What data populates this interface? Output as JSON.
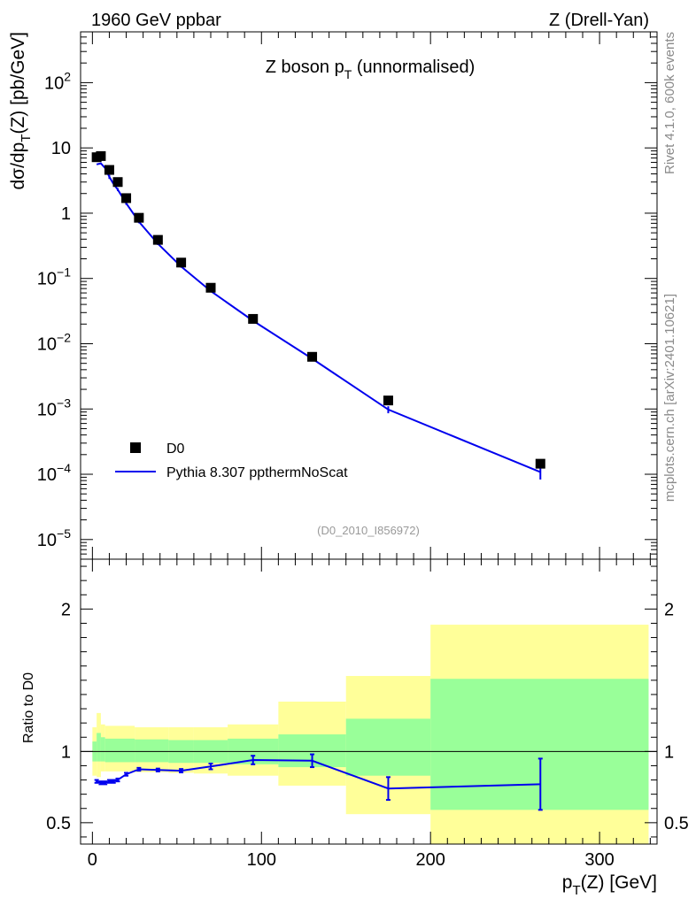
{
  "header": {
    "left": "1960 GeV ppbar",
    "right": "Z (Drell-Yan)"
  },
  "side": {
    "rivet": "Rivet 4.1.0,  600k events",
    "mcplots": "mcplots.cern.ch [arXiv:2401.10621]"
  },
  "chart_data": [
    {
      "type": "scatter",
      "panel": "main",
      "title": "Z boson p_T (unnormalised)",
      "title_main": "Z boson p",
      "title_sub": "T",
      "title_tail": " (unnormalised)",
      "ylabel": "dσ/dp_T(Z) [pb/GeV]",
      "ylabel_parts": {
        "a": "dσ/dp",
        "sub": "T",
        "b": "(Z) [pb/GeV]"
      },
      "yscale": "log",
      "ylim": [
        5e-06,
        600
      ],
      "xlim": [
        -7,
        334
      ],
      "analysis_label": "(D0_2010_I856972)",
      "y_tick_labels": [
        {
          "value": 100,
          "base": "10",
          "exp": "2"
        },
        {
          "value": 10,
          "text": "10"
        },
        {
          "value": 1,
          "text": "1"
        },
        {
          "value": 0.1,
          "base": "10",
          "exp": "−1"
        },
        {
          "value": 0.01,
          "base": "10",
          "exp": "−2"
        },
        {
          "value": 0.001,
          "base": "10",
          "exp": "−3"
        },
        {
          "value": 0.0001,
          "base": "10",
          "exp": "−4"
        },
        {
          "value": 1e-05,
          "base": "10",
          "exp": "−5"
        }
      ],
      "legend": {
        "position": "bottom-left",
        "entries": [
          {
            "name": "D0",
            "marker": "square",
            "color": "#000000"
          },
          {
            "name": "Pythia 8.307 ppthermNoScat",
            "marker": "line",
            "color": "#0000ee"
          }
        ]
      },
      "series": [
        {
          "name": "D0",
          "x": [
            2.5,
            5,
            10,
            15,
            20,
            27.5,
            38.75,
            52.5,
            70,
            95,
            130,
            175,
            265
          ],
          "y": [
            7.2,
            7.5,
            4.6,
            3.0,
            1.7,
            0.85,
            0.39,
            0.175,
            0.072,
            0.024,
            0.0063,
            0.00135,
            0.000145
          ]
        },
        {
          "name": "Pythia 8.307 ppthermNoScat",
          "x": [
            2.5,
            5,
            7.5,
            10,
            12.5,
            15,
            20,
            27.5,
            38.75,
            52.5,
            70,
            95,
            130,
            175,
            265
          ],
          "y": [
            5.6,
            5.8,
            4.9,
            3.6,
            2.8,
            2.3,
            1.42,
            0.74,
            0.34,
            0.152,
            0.064,
            0.0225,
            0.0059,
            0.00098,
            0.000108
          ],
          "yerr": [
            0,
            0,
            0,
            0.25,
            0,
            0.12,
            0.08,
            0.04,
            0.015,
            0.006,
            0.0025,
            0.001,
            0.0003,
            0.00012,
            2.5e-05
          ]
        }
      ]
    },
    {
      "type": "line",
      "panel": "ratio",
      "ylabel": "Ratio to D0",
      "xlabel": "p_T(Z) [GeV]",
      "xlabel_parts": {
        "a": "p",
        "sub": "T",
        "b": "(Z) [GeV]"
      },
      "ylim": [
        0.35,
        2.35
      ],
      "xlim": [
        -7,
        334
      ],
      "x_tick_labels": [
        "0",
        "100",
        "200",
        "300"
      ],
      "y_tick_labels": [
        "0.5",
        "1",
        "2"
      ],
      "reference_line": 1,
      "bands": [
        {
          "x0": 0,
          "x1": 2.5,
          "stat_lo": 0.93,
          "stat_hi": 1.07,
          "tot_lo": 0.83,
          "tot_hi": 1.17
        },
        {
          "x0": 2.5,
          "x1": 5,
          "stat_lo": 0.93,
          "stat_hi": 1.13,
          "tot_lo": 0.82,
          "tot_hi": 1.27
        },
        {
          "x0": 5,
          "x1": 7.5,
          "stat_lo": 0.93,
          "stat_hi": 1.1,
          "tot_lo": 0.86,
          "tot_hi": 1.19
        },
        {
          "x0": 7.5,
          "x1": 25,
          "stat_lo": 0.925,
          "stat_hi": 1.09,
          "tot_lo": 0.86,
          "tot_hi": 1.18
        },
        {
          "x0": 25,
          "x1": 45,
          "stat_lo": 0.925,
          "stat_hi": 1.085,
          "tot_lo": 0.855,
          "tot_hi": 1.17
        },
        {
          "x0": 45,
          "x1": 60,
          "stat_lo": 0.92,
          "stat_hi": 1.08,
          "tot_lo": 0.85,
          "tot_hi": 1.17
        },
        {
          "x0": 60,
          "x1": 80,
          "stat_lo": 0.92,
          "stat_hi": 1.08,
          "tot_lo": 0.845,
          "tot_hi": 1.17
        },
        {
          "x0": 80,
          "x1": 110,
          "stat_lo": 0.91,
          "stat_hi": 1.09,
          "tot_lo": 0.83,
          "tot_hi": 1.19
        },
        {
          "x0": 110,
          "x1": 150,
          "stat_lo": 0.89,
          "stat_hi": 1.12,
          "tot_lo": 0.76,
          "tot_hi": 1.35
        },
        {
          "x0": 150,
          "x1": 200,
          "stat_lo": 0.83,
          "stat_hi": 1.23,
          "tot_lo": 0.56,
          "tot_hi": 1.53
        },
        {
          "x0": 200,
          "x1": 329,
          "stat_lo": 0.59,
          "stat_hi": 1.51,
          "tot_lo": 0.35,
          "tot_hi": 1.89
        }
      ],
      "series": [
        {
          "name": "Pythia 8.307 ppthermNoScat / D0",
          "color": "#0000ee",
          "x": [
            2.5,
            5,
            7.5,
            10,
            12.5,
            15,
            20,
            27.5,
            38.75,
            52.5,
            70,
            95,
            130,
            175,
            265
          ],
          "y": [
            0.79,
            0.78,
            0.78,
            0.79,
            0.79,
            0.8,
            0.84,
            0.875,
            0.87,
            0.865,
            0.895,
            0.94,
            0.935,
            0.74,
            0.77
          ],
          "yerr": [
            0.01,
            0.01,
            0.01,
            0.01,
            0.01,
            0.01,
            0.01,
            0.01,
            0.01,
            0.012,
            0.02,
            0.03,
            0.045,
            0.08,
            0.18
          ]
        }
      ]
    }
  ]
}
